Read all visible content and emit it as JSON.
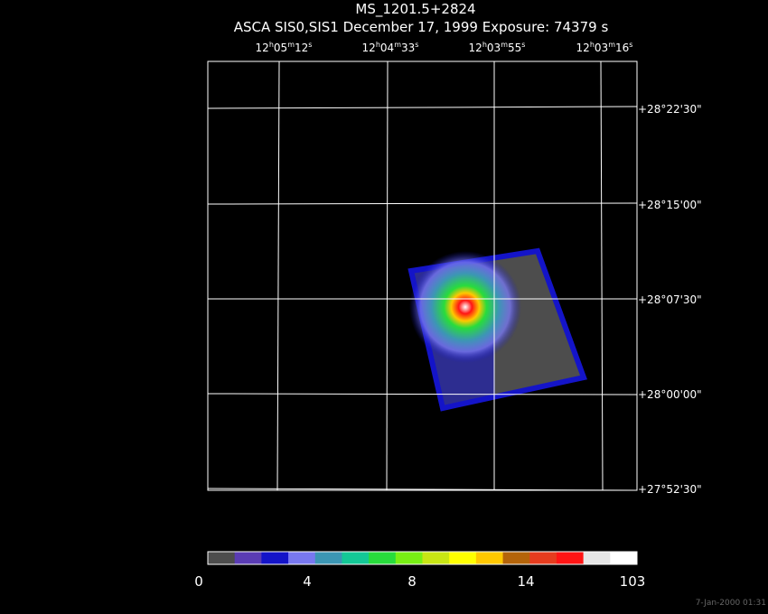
{
  "header": {
    "title": "MS_1201.5+2824",
    "subtitle": "ASCA SIS0,SIS1 December 17, 1999 Exposure: 74379 s"
  },
  "ra_labels": [
    [
      "12",
      "h",
      "05",
      "m",
      "12",
      "s"
    ],
    [
      "12",
      "h",
      "04",
      "m",
      "33",
      "s"
    ],
    [
      "12",
      "h",
      "03",
      "m",
      "55",
      "s"
    ],
    [
      "12",
      "h",
      "03",
      "m",
      "16",
      "s"
    ]
  ],
  "dec_labels": [
    "+28°22'30\"",
    "+28°15'00\"",
    "+28°07'30\"",
    "+28°00'00\"",
    "+27°52'30\""
  ],
  "colorbar": {
    "colors": [
      "#4d4d4d",
      "#5a3cb4",
      "#1414c8",
      "#7878f0",
      "#3c96b4",
      "#14c896",
      "#28dc3c",
      "#78f014",
      "#c8e614",
      "#ffff00",
      "#ffc800",
      "#b4640a",
      "#e63c1e",
      "#ff1414",
      "#e6e6e6",
      "#ffffff"
    ],
    "labels": [
      "0",
      "4",
      "8",
      "14",
      "103"
    ]
  },
  "timestamp": "7-Jan-2000 01:31"
}
